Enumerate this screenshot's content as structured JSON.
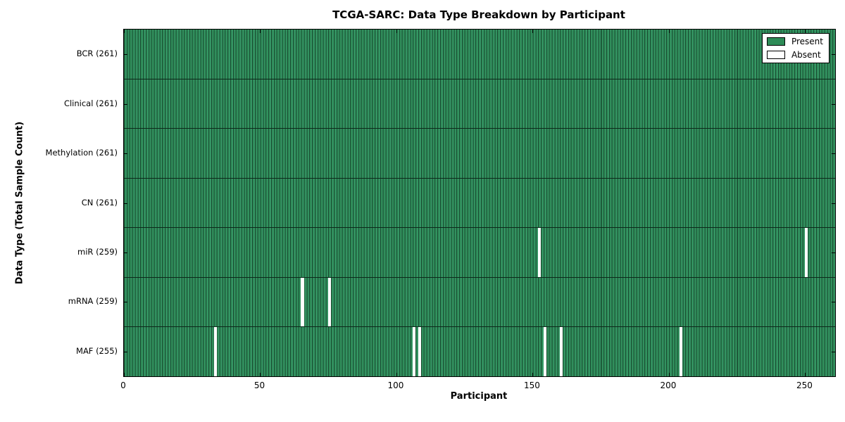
{
  "chart_data": {
    "type": "heatmap",
    "title": "TCGA-SARC: Data Type Breakdown by Participant",
    "xlabel": "Participant",
    "ylabel": "Data Type (Total Sample Count)",
    "xlim": [
      0,
      261
    ],
    "n_participants": 261,
    "x_ticks": [
      0,
      50,
      100,
      150,
      200,
      250
    ],
    "grid": false,
    "legend_position": "upper right",
    "legend": [
      {
        "label": "Present",
        "color": "#2e8b57"
      },
      {
        "label": "Absent",
        "color": "#ffffff"
      }
    ],
    "rows": [
      {
        "label": "BCR (261)",
        "data_type": "BCR",
        "total": 261,
        "absent_participants": []
      },
      {
        "label": "Clinical (261)",
        "data_type": "Clinical",
        "total": 261,
        "absent_participants": []
      },
      {
        "label": "Methylation (261)",
        "data_type": "Methylation",
        "total": 261,
        "absent_participants": []
      },
      {
        "label": "CN (261)",
        "data_type": "CN",
        "total": 261,
        "absent_participants": []
      },
      {
        "label": "miR (259)",
        "data_type": "miR",
        "total": 259,
        "absent_participants": [
          152,
          250
        ]
      },
      {
        "label": "mRNA (259)",
        "data_type": "mRNA",
        "total": 259,
        "absent_participants": [
          65,
          75
        ]
      },
      {
        "label": "MAF (255)",
        "data_type": "MAF",
        "total": 255,
        "absent_participants": [
          33,
          106,
          108,
          154,
          160,
          204
        ]
      }
    ],
    "colors": {
      "present": "#2e8b57",
      "present_highlight": "#38996a",
      "cell_edge": "#17492e",
      "absent": "#ffffff",
      "row_divider": "#0c281a",
      "axis": "#000000"
    }
  }
}
